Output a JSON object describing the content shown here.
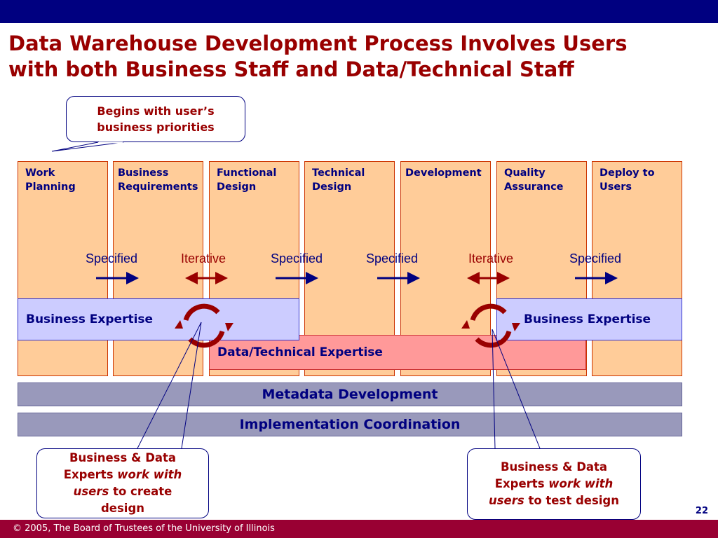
{
  "title": {
    "line1": "Data Warehouse Development Process Involves Users",
    "line2": "with both Business Staff and Data/Technical Staff"
  },
  "callout_top": {
    "text": "Begins with user’s business priorities"
  },
  "stages": [
    "Work\nPlanning",
    "Business\nRequirements",
    "Functional\nDesign",
    "Technical\nDesign",
    "Development",
    "Quality\nAssurance",
    "Deploy to\nUsers"
  ],
  "transitions": [
    "Specified",
    "Iterative",
    "Specified",
    "Specified",
    "Iterative",
    "Specified"
  ],
  "bands": {
    "business_left": "Business Expertise",
    "business_right": "Business Expertise",
    "data_technical": "Data/Technical Expertise"
  },
  "bars": {
    "metadata": "Metadata Development",
    "implementation": "Implementation Coordination"
  },
  "callout_left": {
    "pre": "Business & Data Experts",
    "emph": "work with users",
    "post": "to create design"
  },
  "callout_right": {
    "pre": "Business & Data Experts",
    "emph": "work with users",
    "post": "to test design"
  },
  "page_number": "22",
  "footer": "© 2005, The Board of Trustees of the University of Illinois",
  "colors": {
    "header_bar": "#000080",
    "title": "#990000",
    "stage_fill": "#ffcc99",
    "business_band": "#ccccff",
    "data_band": "#ff9999",
    "process_bar": "#9999bb",
    "footer_bar": "#990033"
  }
}
